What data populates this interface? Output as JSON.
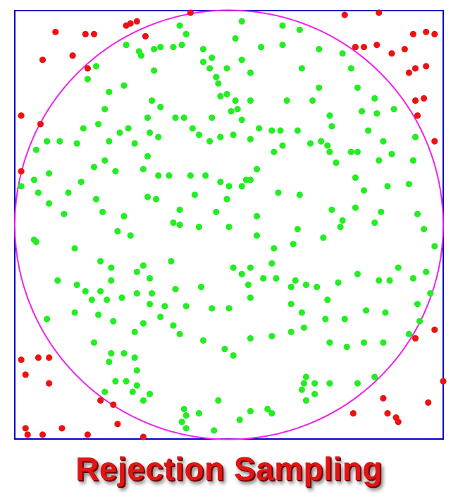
{
  "caption": "Rejection Sampling",
  "colors": {
    "frame": "#0000c8",
    "circle": "#ee22ee",
    "accepted": "#22ee22",
    "rejected": "#ee1111"
  },
  "chart_data": {
    "type": "scatter",
    "xlim": [
      -1,
      1
    ],
    "ylim": [
      -1,
      1
    ],
    "circle": {
      "center": [
        0,
        0
      ],
      "radius": 1
    },
    "series": [
      {
        "color": "#22ee22",
        "points": [
          [
            0.06,
            0.95
          ],
          [
            -0.23,
            0.93
          ],
          [
            0.25,
            0.93
          ],
          [
            0.33,
            0.91
          ],
          [
            -0.2,
            0.89
          ],
          [
            0.03,
            0.87
          ],
          [
            -0.48,
            0.84
          ],
          [
            -0.42,
            0.81
          ],
          [
            -0.26,
            0.83
          ],
          [
            -0.22,
            0.84
          ],
          [
            -0.32,
            0.83
          ],
          [
            -0.35,
            0.82
          ],
          [
            -0.12,
            0.82
          ],
          [
            -0.08,
            0.78
          ],
          [
            -0.41,
            0.79
          ],
          [
            0.06,
            0.77
          ],
          [
            0.15,
            0.83
          ],
          [
            0.25,
            0.84
          ],
          [
            0.42,
            0.82
          ],
          [
            0.53,
            0.8
          ],
          [
            -0.35,
            0.72
          ],
          [
            -0.12,
            0.76
          ],
          [
            -0.09,
            0.73
          ],
          [
            -0.06,
            0.69
          ],
          [
            -0.01,
            0.73
          ],
          [
            0.1,
            0.71
          ],
          [
            0.34,
            0.73
          ],
          [
            0.42,
            0.64
          ],
          [
            0.57,
            0.73
          ],
          [
            0.6,
            0.64
          ],
          [
            0.68,
            0.59
          ],
          [
            -0.62,
            0.74
          ],
          [
            -0.66,
            0.68
          ],
          [
            -0.49,
            0.65
          ],
          [
            -0.05,
            0.66
          ],
          [
            -0.01,
            0.61
          ],
          [
            0.03,
            0.58
          ],
          [
            0.1,
            0.58
          ],
          [
            0.27,
            0.58
          ],
          [
            0.39,
            0.58
          ],
          [
            -0.56,
            0.62
          ],
          [
            -0.58,
            0.54
          ],
          [
            -0.36,
            0.58
          ],
          [
            -0.32,
            0.55
          ],
          [
            -0.25,
            0.5
          ],
          [
            -0.21,
            0.5
          ],
          [
            -0.17,
            0.45
          ],
          [
            -0.08,
            0.5
          ],
          [
            0.01,
            0.53
          ],
          [
            0.04,
            0.54
          ],
          [
            -0.04,
            0.6
          ],
          [
            0.06,
            0.49
          ],
          [
            0.14,
            0.45
          ],
          [
            0.24,
            0.44
          ],
          [
            0.32,
            0.44
          ],
          [
            0.47,
            0.51
          ],
          [
            0.48,
            0.46
          ],
          [
            0.62,
            0.53
          ],
          [
            0.69,
            0.52
          ],
          [
            0.77,
            0.54
          ],
          [
            -0.68,
            0.45
          ],
          [
            -0.61,
            0.47
          ],
          [
            -0.56,
            0.39
          ],
          [
            -0.51,
            0.43
          ],
          [
            -0.47,
            0.45
          ],
          [
            -0.44,
            0.38
          ],
          [
            -0.38,
            0.5
          ],
          [
            -0.37,
            0.43
          ],
          [
            -0.38,
            0.32
          ],
          [
            -0.33,
            0.41
          ],
          [
            -0.14,
            0.42
          ],
          [
            -0.09,
            0.39
          ],
          [
            -0.04,
            0.41
          ],
          [
            0.02,
            0.42
          ],
          [
            0.1,
            0.4
          ],
          [
            0.2,
            0.44
          ],
          [
            0.25,
            0.37
          ],
          [
            0.38,
            0.38
          ],
          [
            0.43,
            0.39
          ],
          [
            0.46,
            0.37
          ],
          [
            0.65,
            0.44
          ],
          [
            0.72,
            0.39
          ],
          [
            0.87,
            0.41
          ],
          [
            -0.85,
            0.39
          ],
          [
            -0.79,
            0.39
          ],
          [
            -0.71,
            0.38
          ],
          [
            -0.58,
            0.3
          ],
          [
            -0.63,
            0.27
          ],
          [
            -0.69,
            0.2
          ],
          [
            -0.53,
            0.25
          ],
          [
            -0.4,
            0.26
          ],
          [
            -0.33,
            0.23
          ],
          [
            -0.28,
            0.23
          ],
          [
            -0.18,
            0.23
          ],
          [
            -0.11,
            0.23
          ],
          [
            -0.04,
            0.2
          ],
          [
            0.0,
            0.18
          ],
          [
            0.06,
            0.18
          ],
          [
            0.08,
            0.21
          ],
          [
            0.13,
            0.26
          ],
          [
            0.21,
            0.34
          ],
          [
            0.47,
            0.34
          ],
          [
            0.5,
            0.29
          ],
          [
            0.57,
            0.34
          ],
          [
            0.6,
            0.34
          ],
          [
            0.7,
            0.3
          ],
          [
            0.76,
            0.33
          ],
          [
            0.86,
            0.3
          ],
          [
            -0.9,
            0.35
          ],
          [
            -0.91,
            0.21
          ],
          [
            -0.84,
            0.24
          ],
          [
            -0.75,
            0.15
          ],
          [
            -0.89,
            0.15
          ],
          [
            -0.62,
            0.12
          ],
          [
            -0.49,
            0.04
          ],
          [
            -0.38,
            0.13
          ],
          [
            -0.34,
            0.12
          ],
          [
            -0.23,
            0.07
          ],
          [
            -0.16,
            0.14
          ],
          [
            -0.06,
            0.06
          ],
          [
            -0.01,
            0.12
          ],
          [
            0.13,
            0.04
          ],
          [
            0.1,
            0.21
          ],
          [
            0.23,
            0.15
          ],
          [
            0.33,
            0.14
          ],
          [
            0.48,
            0.07
          ],
          [
            0.53,
            0.02
          ],
          [
            0.63,
            0.16
          ],
          [
            0.59,
            0.22
          ],
          [
            0.74,
            0.18
          ],
          [
            0.84,
            0.19
          ],
          [
            -0.97,
            0.18
          ],
          [
            -0.84,
            0.1
          ],
          [
            -0.77,
            0.05
          ],
          [
            -0.9,
            -0.08
          ],
          [
            -0.59,
            0.06
          ],
          [
            -0.52,
            -0.03
          ],
          [
            -0.46,
            -0.05
          ],
          [
            -0.26,
            0.01
          ],
          [
            -0.23,
            0.0
          ],
          [
            -0.14,
            -0.01
          ],
          [
            0.0,
            -0.01
          ],
          [
            0.13,
            -0.05
          ],
          [
            0.21,
            -0.11
          ],
          [
            0.3,
            -0.09
          ],
          [
            0.32,
            -0.02
          ],
          [
            0.44,
            -0.06
          ],
          [
            0.52,
            -0.01
          ],
          [
            0.71,
            0.06
          ],
          [
            0.59,
            0.08
          ],
          [
            0.68,
            0.01
          ],
          [
            0.88,
            0.05
          ],
          [
            0.91,
            -0.02
          ],
          [
            0.96,
            -0.1
          ],
          [
            -0.91,
            -0.07
          ],
          [
            -0.72,
            -0.11
          ],
          [
            -0.6,
            -0.17
          ],
          [
            -0.55,
            -0.2
          ],
          [
            -0.55,
            -0.26
          ],
          [
            -0.43,
            -0.22
          ],
          [
            -0.4,
            -0.19
          ],
          [
            -0.37,
            -0.25
          ],
          [
            -0.36,
            -0.32
          ],
          [
            -0.27,
            -0.17
          ],
          [
            -0.25,
            -0.3
          ],
          [
            -0.2,
            -0.38
          ],
          [
            -0.13,
            -0.29
          ],
          [
            0.02,
            -0.2
          ],
          [
            0.06,
            -0.23
          ],
          [
            0.09,
            -0.28
          ],
          [
            0.1,
            -0.2
          ],
          [
            0.16,
            -0.25
          ],
          [
            0.2,
            -0.18
          ],
          [
            0.22,
            -0.25
          ],
          [
            0.29,
            -0.29
          ],
          [
            0.31,
            -0.26
          ],
          [
            0.36,
            -0.28
          ],
          [
            0.41,
            -0.29
          ],
          [
            0.46,
            -0.35
          ],
          [
            0.51,
            -0.27
          ],
          [
            0.6,
            -0.23
          ],
          [
            0.7,
            -0.26
          ],
          [
            0.75,
            -0.26
          ],
          [
            0.79,
            -0.2
          ],
          [
            0.86,
            -0.25
          ],
          [
            0.92,
            -0.22
          ],
          [
            -0.8,
            -0.26
          ],
          [
            -0.71,
            -0.28
          ],
          [
            -0.64,
            -0.35
          ],
          [
            -0.67,
            -0.31
          ],
          [
            -0.6,
            -0.31
          ],
          [
            -0.57,
            -0.35
          ],
          [
            -0.5,
            -0.34
          ],
          [
            -0.43,
            -0.32
          ],
          [
            -0.37,
            -0.37
          ],
          [
            -0.3,
            -0.38
          ],
          [
            -0.08,
            -0.39
          ],
          [
            0.0,
            -0.39
          ],
          [
            0.1,
            -0.34
          ],
          [
            0.29,
            -0.37
          ],
          [
            0.34,
            -0.41
          ],
          [
            0.45,
            -0.44
          ],
          [
            0.54,
            -0.44
          ],
          [
            0.64,
            -0.4
          ],
          [
            0.73,
            -0.41
          ],
          [
            0.88,
            -0.37
          ],
          [
            0.94,
            -0.32
          ],
          [
            -0.85,
            -0.44
          ],
          [
            -0.72,
            -0.41
          ],
          [
            -0.61,
            -0.42
          ],
          [
            -0.54,
            -0.45
          ],
          [
            -0.4,
            -0.46
          ],
          [
            -0.44,
            -0.5
          ],
          [
            -0.32,
            -0.43
          ],
          [
            -0.26,
            -0.47
          ],
          [
            -0.23,
            -0.51
          ],
          [
            -0.12,
            -0.54
          ],
          [
            -0.02,
            -0.58
          ],
          [
            0.02,
            -0.61
          ],
          [
            0.1,
            -0.53
          ],
          [
            0.2,
            -0.52
          ],
          [
            0.29,
            -0.5
          ],
          [
            0.35,
            -0.48
          ],
          [
            0.47,
            -0.55
          ],
          [
            0.55,
            -0.57
          ],
          [
            0.63,
            -0.55
          ],
          [
            0.72,
            -0.55
          ],
          [
            0.84,
            -0.51
          ],
          [
            0.89,
            -0.45
          ],
          [
            -0.63,
            -0.55
          ],
          [
            -0.55,
            -0.6
          ],
          [
            -0.56,
            -0.64
          ],
          [
            -0.49,
            -0.6
          ],
          [
            -0.43,
            -0.68
          ],
          [
            -0.43,
            -0.75
          ],
          [
            -0.4,
            -0.82
          ],
          [
            -0.45,
            -0.78
          ],
          [
            -0.48,
            -0.73
          ],
          [
            -0.44,
            -0.62
          ],
          [
            -0.53,
            -0.73
          ],
          [
            -0.58,
            -0.78
          ],
          [
            -0.37,
            -0.79
          ],
          [
            -0.21,
            -0.86
          ],
          [
            -0.2,
            -0.89
          ],
          [
            -0.14,
            -0.88
          ],
          [
            -0.22,
            -0.92
          ],
          [
            -0.2,
            -0.95
          ],
          [
            -0.07,
            -0.96
          ],
          [
            -0.05,
            -0.82
          ],
          [
            0.05,
            -0.91
          ],
          [
            0.1,
            -0.87
          ],
          [
            0.18,
            -0.86
          ],
          [
            0.2,
            -0.88
          ],
          [
            0.34,
            -0.77
          ],
          [
            0.36,
            -0.82
          ],
          [
            0.4,
            -0.79
          ],
          [
            0.4,
            -0.74
          ],
          [
            0.35,
            -0.74
          ],
          [
            0.47,
            -0.74
          ],
          [
            0.6,
            -0.74
          ],
          [
            0.36,
            -0.71
          ],
          [
            0.68,
            -0.71
          ]
        ]
      },
      {
        "color": "#ee1111",
        "points": [
          [
            -0.81,
            0.9
          ],
          [
            -0.67,
            0.89
          ],
          [
            -0.63,
            0.89
          ],
          [
            -0.48,
            0.93
          ],
          [
            -0.46,
            0.94
          ],
          [
            -0.43,
            0.95
          ],
          [
            -0.39,
            0.88
          ],
          [
            -0.73,
            0.79
          ],
          [
            -0.87,
            0.77
          ],
          [
            -0.66,
            0.73
          ],
          [
            -0.18,
            0.99
          ],
          [
            0.54,
            0.98
          ],
          [
            0.7,
            0.99
          ],
          [
            0.59,
            0.83
          ],
          [
            0.63,
            0.83
          ],
          [
            0.69,
            0.84
          ],
          [
            0.76,
            0.8
          ],
          [
            0.84,
            0.71
          ],
          [
            0.87,
            0.73
          ],
          [
            0.92,
            0.74
          ],
          [
            0.92,
            0.9
          ],
          [
            0.96,
            0.89
          ],
          [
            0.86,
            0.89
          ],
          [
            0.82,
            0.82
          ],
          [
            0.87,
            0.58
          ],
          [
            0.91,
            0.59
          ],
          [
            0.88,
            0.51
          ],
          [
            0.96,
            0.39
          ],
          [
            -0.97,
            0.51
          ],
          [
            -0.88,
            0.47
          ],
          [
            -0.97,
            0.25
          ],
          [
            -0.97,
            -0.63
          ],
          [
            -0.95,
            -0.7
          ],
          [
            -0.89,
            -0.62
          ],
          [
            -0.84,
            -0.62
          ],
          [
            -0.84,
            -0.74
          ],
          [
            -0.6,
            -0.82
          ],
          [
            -0.54,
            -0.84
          ],
          [
            -0.95,
            -0.95
          ],
          [
            -0.94,
            -0.98
          ],
          [
            -0.87,
            -0.98
          ],
          [
            -0.78,
            -0.95
          ],
          [
            -0.66,
            -0.98
          ],
          [
            -0.52,
            -0.93
          ],
          [
            -0.4,
            -0.99
          ],
          [
            0.58,
            -0.88
          ],
          [
            0.74,
            -0.88
          ],
          [
            0.78,
            -0.9
          ],
          [
            0.79,
            -0.92
          ],
          [
            0.72,
            -0.81
          ],
          [
            0.93,
            -0.83
          ],
          [
            0.96,
            -0.49
          ],
          [
            0.87,
            -0.53
          ],
          [
            1.0,
            -0.73
          ]
        ]
      }
    ]
  }
}
